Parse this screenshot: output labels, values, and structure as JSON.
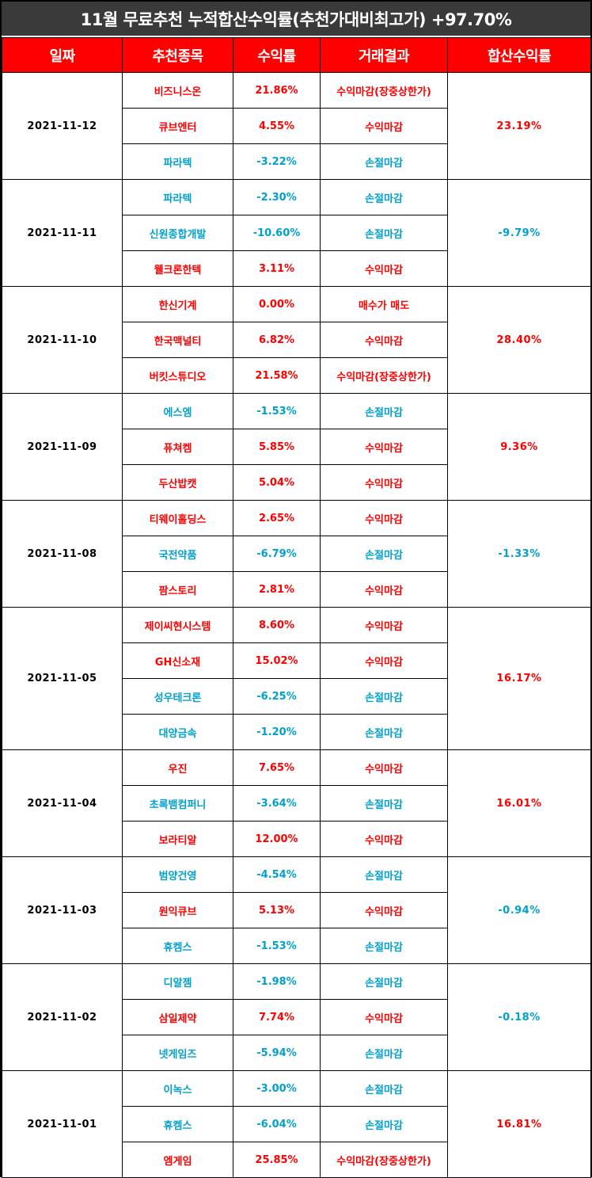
{
  "title": "11월 무료추천 누적합산수익률(추천가대비최고가) +97.70%",
  "headers": [
    "일짜",
    "추천종목",
    "수익률",
    "거래결과",
    "합산수익률"
  ],
  "colors": {
    "header_bg": "#ff0000",
    "title_bg": "#3a3a3a",
    "positive": "#ff0000",
    "negative": "#00a0d0",
    "highlight": "#ffff00",
    "date_bg": "#fdfaf2"
  },
  "groups": [
    {
      "date": "2021-11-12",
      "total": "23.19%",
      "total_sign": "pos",
      "rows": [
        {
          "stock": "비즈니스온",
          "rate": "21.86%",
          "result": "수익마감(장중상한가)",
          "sign": "pos",
          "hl_stock": true,
          "hl_result": true
        },
        {
          "stock": "큐브엔터",
          "rate": "4.55%",
          "result": "수익마감",
          "sign": "pos",
          "hl_stock": false,
          "hl_result": false
        },
        {
          "stock": "파라텍",
          "rate": "-3.22%",
          "result": "손절마감",
          "sign": "neg",
          "hl_stock": false,
          "hl_result": false
        }
      ]
    },
    {
      "date": "2021-11-11",
      "total": "-9.79%",
      "total_sign": "neg",
      "rows": [
        {
          "stock": "파라텍",
          "rate": "-2.30%",
          "result": "손절마감",
          "sign": "neg",
          "hl_stock": false,
          "hl_result": false
        },
        {
          "stock": "신원종합개발",
          "rate": "-10.60%",
          "result": "손절마감",
          "sign": "neg",
          "hl_stock": false,
          "hl_result": false
        },
        {
          "stock": "웰크론한텍",
          "rate": "3.11%",
          "result": "수익마감",
          "sign": "pos",
          "hl_stock": false,
          "hl_result": false
        }
      ]
    },
    {
      "date": "2021-11-10",
      "total": "28.40%",
      "total_sign": "pos",
      "rows": [
        {
          "stock": "한신기계",
          "rate": "0.00%",
          "result": "매수가 매도",
          "sign": "neu",
          "hl_stock": false,
          "hl_result": false
        },
        {
          "stock": "한국맥널티",
          "rate": "6.82%",
          "result": "수익마감",
          "sign": "pos",
          "hl_stock": false,
          "hl_result": false
        },
        {
          "stock": "버킷스튜디오",
          "rate": "21.58%",
          "result": "수익마감(장중상한가)",
          "sign": "pos",
          "hl_stock": true,
          "hl_result": true
        }
      ]
    },
    {
      "date": "2021-11-09",
      "total": "9.36%",
      "total_sign": "pos",
      "rows": [
        {
          "stock": "에스엠",
          "rate": "-1.53%",
          "result": "손절마감",
          "sign": "neg",
          "hl_stock": false,
          "hl_result": false
        },
        {
          "stock": "퓨쳐켐",
          "rate": "5.85%",
          "result": "수익마감",
          "sign": "pos",
          "hl_stock": false,
          "hl_result": false
        },
        {
          "stock": "두산밥캣",
          "rate": "5.04%",
          "result": "수익마감",
          "sign": "pos",
          "hl_stock": false,
          "hl_result": false
        }
      ]
    },
    {
      "date": "2021-11-08",
      "total": "-1.33%",
      "total_sign": "neg",
      "rows": [
        {
          "stock": "티웨이홀딩스",
          "rate": "2.65%",
          "result": "수익마감",
          "sign": "pos",
          "hl_stock": false,
          "hl_result": false
        },
        {
          "stock": "국전약품",
          "rate": "-6.79%",
          "result": "손절마감",
          "sign": "neg",
          "hl_stock": false,
          "hl_result": false
        },
        {
          "stock": "팜스토리",
          "rate": "2.81%",
          "result": "수익마감",
          "sign": "pos",
          "hl_stock": false,
          "hl_result": false
        }
      ]
    },
    {
      "date": "2021-11-05",
      "total": "16.17%",
      "total_sign": "pos",
      "rows": [
        {
          "stock": "제이씨현시스템",
          "rate": "8.60%",
          "result": "수익마감",
          "sign": "pos",
          "hl_stock": false,
          "hl_result": false
        },
        {
          "stock": "GH신소재",
          "rate": "15.02%",
          "result": "수익마감",
          "sign": "pos",
          "hl_stock": true,
          "hl_result": true
        },
        {
          "stock": "성우테크론",
          "rate": "-6.25%",
          "result": "손절마감",
          "sign": "neg",
          "hl_stock": false,
          "hl_result": false
        },
        {
          "stock": "대양금속",
          "rate": "-1.20%",
          "result": "손절마감",
          "sign": "neg",
          "hl_stock": false,
          "hl_result": false
        }
      ]
    },
    {
      "date": "2021-11-04",
      "total": "16.01%",
      "total_sign": "pos",
      "rows": [
        {
          "stock": "우진",
          "rate": "7.65%",
          "result": "수익마감",
          "sign": "pos",
          "hl_stock": false,
          "hl_result": false
        },
        {
          "stock": "초록뱀컴퍼니",
          "rate": "-3.64%",
          "result": "손절마감",
          "sign": "neg",
          "hl_stock": false,
          "hl_result": false
        },
        {
          "stock": "보라티알",
          "rate": "12.00%",
          "result": "수익마감",
          "sign": "pos",
          "hl_stock": true,
          "hl_result": true
        }
      ]
    },
    {
      "date": "2021-11-03",
      "total": "-0.94%",
      "total_sign": "neg",
      "rows": [
        {
          "stock": "범양건영",
          "rate": "-4.54%",
          "result": "손절마감",
          "sign": "neg",
          "hl_stock": false,
          "hl_result": false
        },
        {
          "stock": "원익큐브",
          "rate": "5.13%",
          "result": "수익마감",
          "sign": "pos",
          "hl_stock": false,
          "hl_result": false
        },
        {
          "stock": "휴켐스",
          "rate": "-1.53%",
          "result": "손절마감",
          "sign": "neg",
          "hl_stock": false,
          "hl_result": false
        }
      ]
    },
    {
      "date": "2021-11-02",
      "total": "-0.18%",
      "total_sign": "neg",
      "rows": [
        {
          "stock": "디알젬",
          "rate": "-1.98%",
          "result": "손절마감",
          "sign": "neg",
          "hl_stock": false,
          "hl_result": false
        },
        {
          "stock": "삼일제약",
          "rate": "7.74%",
          "result": "수익마감",
          "sign": "pos",
          "hl_stock": false,
          "hl_result": false
        },
        {
          "stock": "넷게임즈",
          "rate": "-5.94%",
          "result": "손절마감",
          "sign": "neg",
          "hl_stock": false,
          "hl_result": false
        }
      ]
    },
    {
      "date": "2021-11-01",
      "total": "16.81%",
      "total_sign": "pos",
      "rows": [
        {
          "stock": "이녹스",
          "rate": "-3.00%",
          "result": "손절마감",
          "sign": "neg",
          "hl_stock": false,
          "hl_result": false
        },
        {
          "stock": "휴켐스",
          "rate": "-6.04%",
          "result": "손절마감",
          "sign": "neg",
          "hl_stock": false,
          "hl_result": false
        },
        {
          "stock": "엠게임",
          "rate": "25.85%",
          "result": "수익마감(장중상한가)",
          "sign": "pos",
          "hl_stock": true,
          "hl_result": true
        }
      ]
    }
  ]
}
